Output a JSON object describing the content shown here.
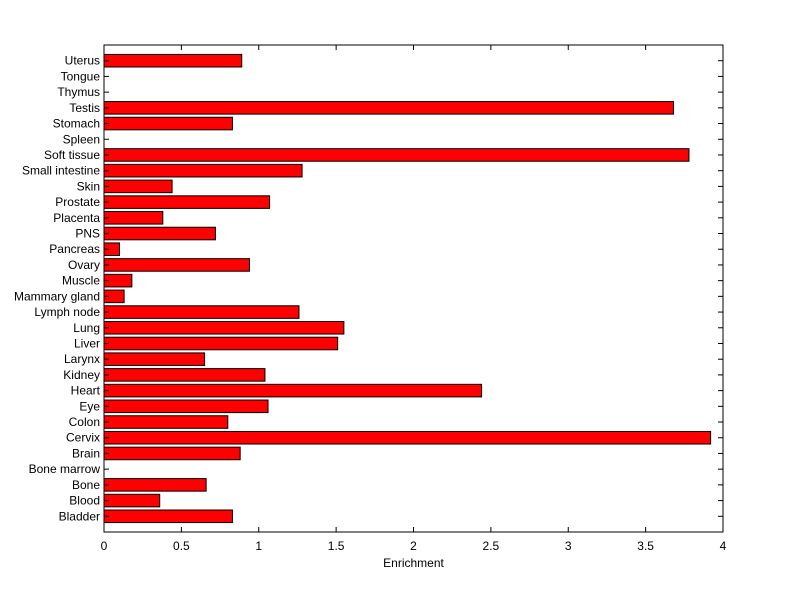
{
  "chart_data": {
    "type": "bar",
    "orientation": "horizontal",
    "title": "",
    "xlabel": "Enrichment",
    "ylabel": "",
    "xlim": [
      0,
      4
    ],
    "x_ticks": [
      0,
      0.5,
      1,
      1.5,
      2,
      2.5,
      3,
      3.5,
      4
    ],
    "x_tick_labels": [
      "0",
      "0.5",
      "1",
      "1.5",
      "2",
      "2.5",
      "3",
      "3.5",
      "4"
    ],
    "grid": false,
    "legend": "none",
    "bar_color": "#ff0000",
    "bar_edge_color": "#000000",
    "categories": [
      "Bladder",
      "Blood",
      "Bone",
      "Bone marrow",
      "Brain",
      "Cervix",
      "Colon",
      "Eye",
      "Heart",
      "Kidney",
      "Larynx",
      "Liver",
      "Lung",
      "Lymph node",
      "Mammary gland",
      "Muscle",
      "Ovary",
      "Pancreas",
      "PNS",
      "Placenta",
      "Prostate",
      "Skin",
      "Small intestine",
      "Soft tissue",
      "Spleen",
      "Stomach",
      "Testis",
      "Thymus",
      "Tongue",
      "Uterus"
    ],
    "values": [
      0.83,
      0.36,
      0.66,
      0,
      0.88,
      3.92,
      0.8,
      1.06,
      2.44,
      1.04,
      0.65,
      1.51,
      1.55,
      1.26,
      0.13,
      0.18,
      0.94,
      0.1,
      0.72,
      0.38,
      1.07,
      0.44,
      1.28,
      3.78,
      0,
      0.83,
      3.68,
      0,
      0,
      0.89
    ]
  }
}
